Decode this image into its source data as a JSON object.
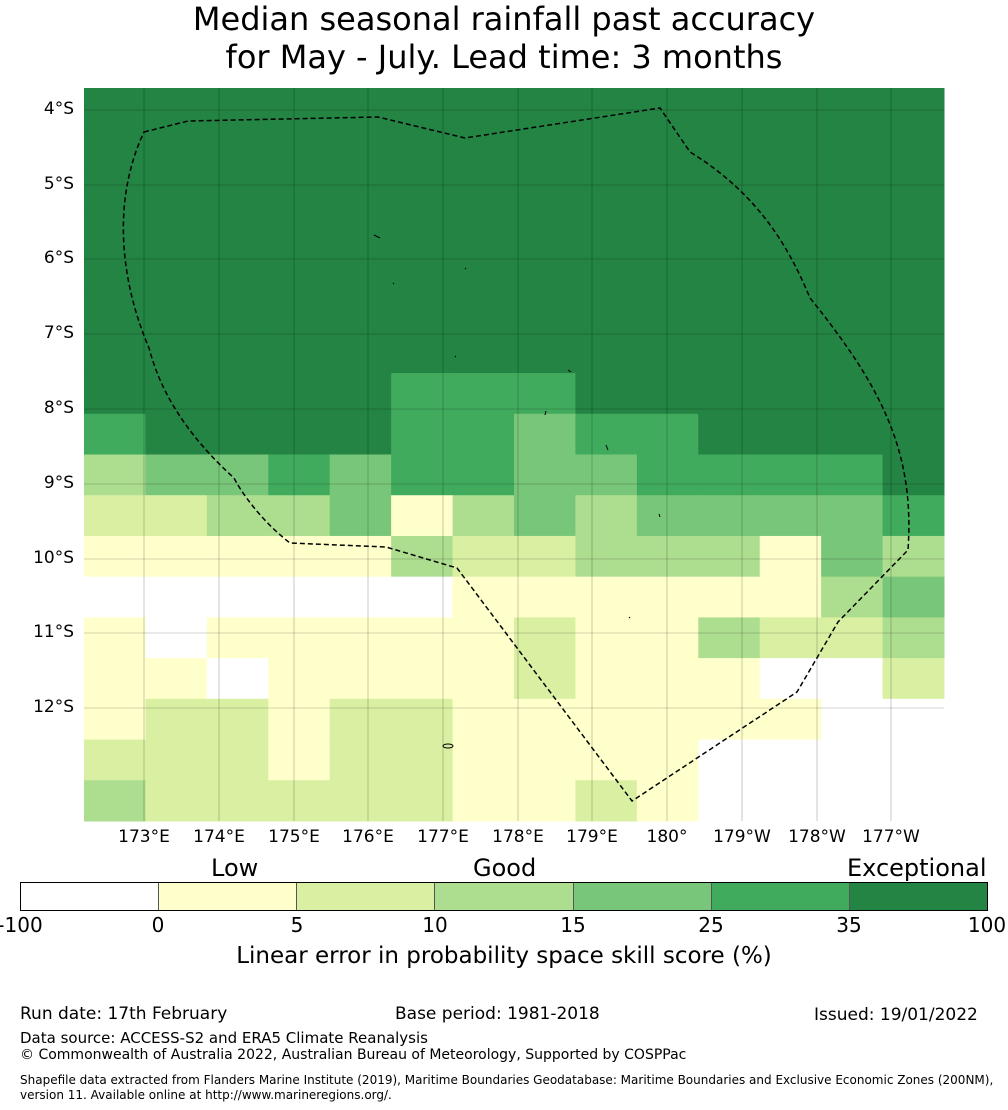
{
  "title": {
    "line1": "Median seasonal rainfall past accuracy",
    "line2": "for May - July. Lead time: 3 months"
  },
  "map": {
    "lat_labels": [
      "4°S",
      "5°S",
      "6°S",
      "7°S",
      "8°S",
      "9°S",
      "10°S",
      "11°S",
      "12°S"
    ],
    "lon_labels": [
      "173°E",
      "174°E",
      "175°E",
      "176°E",
      "177°E",
      "178°E",
      "179°E",
      "180°",
      "179°W",
      "178°W",
      "177°W"
    ],
    "legend_colors": [
      "#ffffff",
      "#ffffcc",
      "#d9f0a3",
      "#addd8e",
      "#78c679",
      "#41ab5d",
      "#238443"
    ],
    "grid": [
      [
        6,
        6,
        6,
        6,
        6,
        6,
        6,
        6,
        6,
        6,
        6,
        6,
        6,
        6
      ],
      [
        6,
        6,
        6,
        6,
        6,
        6,
        6,
        6,
        6,
        6,
        6,
        6,
        6,
        6
      ],
      [
        6,
        6,
        6,
        6,
        6,
        6,
        6,
        6,
        6,
        6,
        6,
        6,
        6,
        6
      ],
      [
        6,
        6,
        6,
        6,
        6,
        6,
        6,
        6,
        6,
        6,
        6,
        6,
        6,
        6
      ],
      [
        6,
        6,
        6,
        6,
        6,
        6,
        6,
        6,
        6,
        6,
        6,
        6,
        6,
        6
      ],
      [
        6,
        6,
        6,
        6,
        6,
        6,
        6,
        6,
        6,
        6,
        6,
        6,
        6,
        6
      ],
      [
        6,
        6,
        6,
        6,
        6,
        6,
        6,
        6,
        6,
        6,
        6,
        6,
        6,
        6
      ],
      [
        6,
        6,
        6,
        6,
        6,
        5,
        5,
        5,
        6,
        6,
        6,
        6,
        6,
        6
      ],
      [
        5,
        6,
        6,
        6,
        6,
        5,
        5,
        4,
        5,
        5,
        6,
        6,
        6,
        6
      ],
      [
        3,
        4,
        4,
        5,
        4,
        5,
        5,
        4,
        4,
        5,
        5,
        5,
        5,
        6
      ],
      [
        2,
        2,
        3,
        3,
        4,
        1,
        3,
        4,
        3,
        4,
        4,
        4,
        4,
        5
      ],
      [
        1,
        1,
        1,
        1,
        1,
        3,
        2,
        2,
        3,
        3,
        3,
        1,
        4,
        3
      ],
      [
        0,
        0,
        0,
        0,
        0,
        0,
        1,
        1,
        1,
        1,
        1,
        1,
        3,
        4
      ],
      [
        1,
        0,
        1,
        1,
        1,
        1,
        1,
        2,
        1,
        1,
        3,
        2,
        2,
        3
      ],
      [
        1,
        1,
        0,
        1,
        1,
        1,
        1,
        2,
        1,
        1,
        1,
        0,
        0,
        2
      ],
      [
        1,
        2,
        2,
        1,
        2,
        2,
        1,
        1,
        1,
        1,
        1,
        1,
        0,
        0
      ],
      [
        2,
        2,
        2,
        1,
        2,
        2,
        1,
        1,
        1,
        1,
        0,
        0,
        0,
        0
      ],
      [
        3,
        2,
        2,
        2,
        2,
        2,
        1,
        1,
        2,
        1,
        0,
        0,
        0,
        0
      ]
    ]
  },
  "legend": {
    "categories": [
      "Low",
      "Good",
      "Exceptional"
    ],
    "ticks": [
      "-100",
      "0",
      "5",
      "10",
      "15",
      "25",
      "35",
      "100"
    ],
    "label": "Linear error in probability space skill score (%)"
  },
  "footer": {
    "run_date": "Run date: 17th February",
    "base_period": "Base period: 1981-2018",
    "issued": "Issued: 19/01/2022",
    "data_source": "Data source: ACCESS-S2 and ERA5 Climate Reanalysis",
    "copyright": "© Commonwealth of Australia 2022, Australian Bureau of Meteorology, Supported by COSPPac",
    "shapefile_line1": "Shapefile data extracted from Flanders Marine Institute (2019), Maritime Boundaries Geodatabase: Maritime Boundaries and Exclusive Economic Zones (200NM),",
    "shapefile_line2": "version 11. Available online at http://www.marineregions.org/."
  }
}
